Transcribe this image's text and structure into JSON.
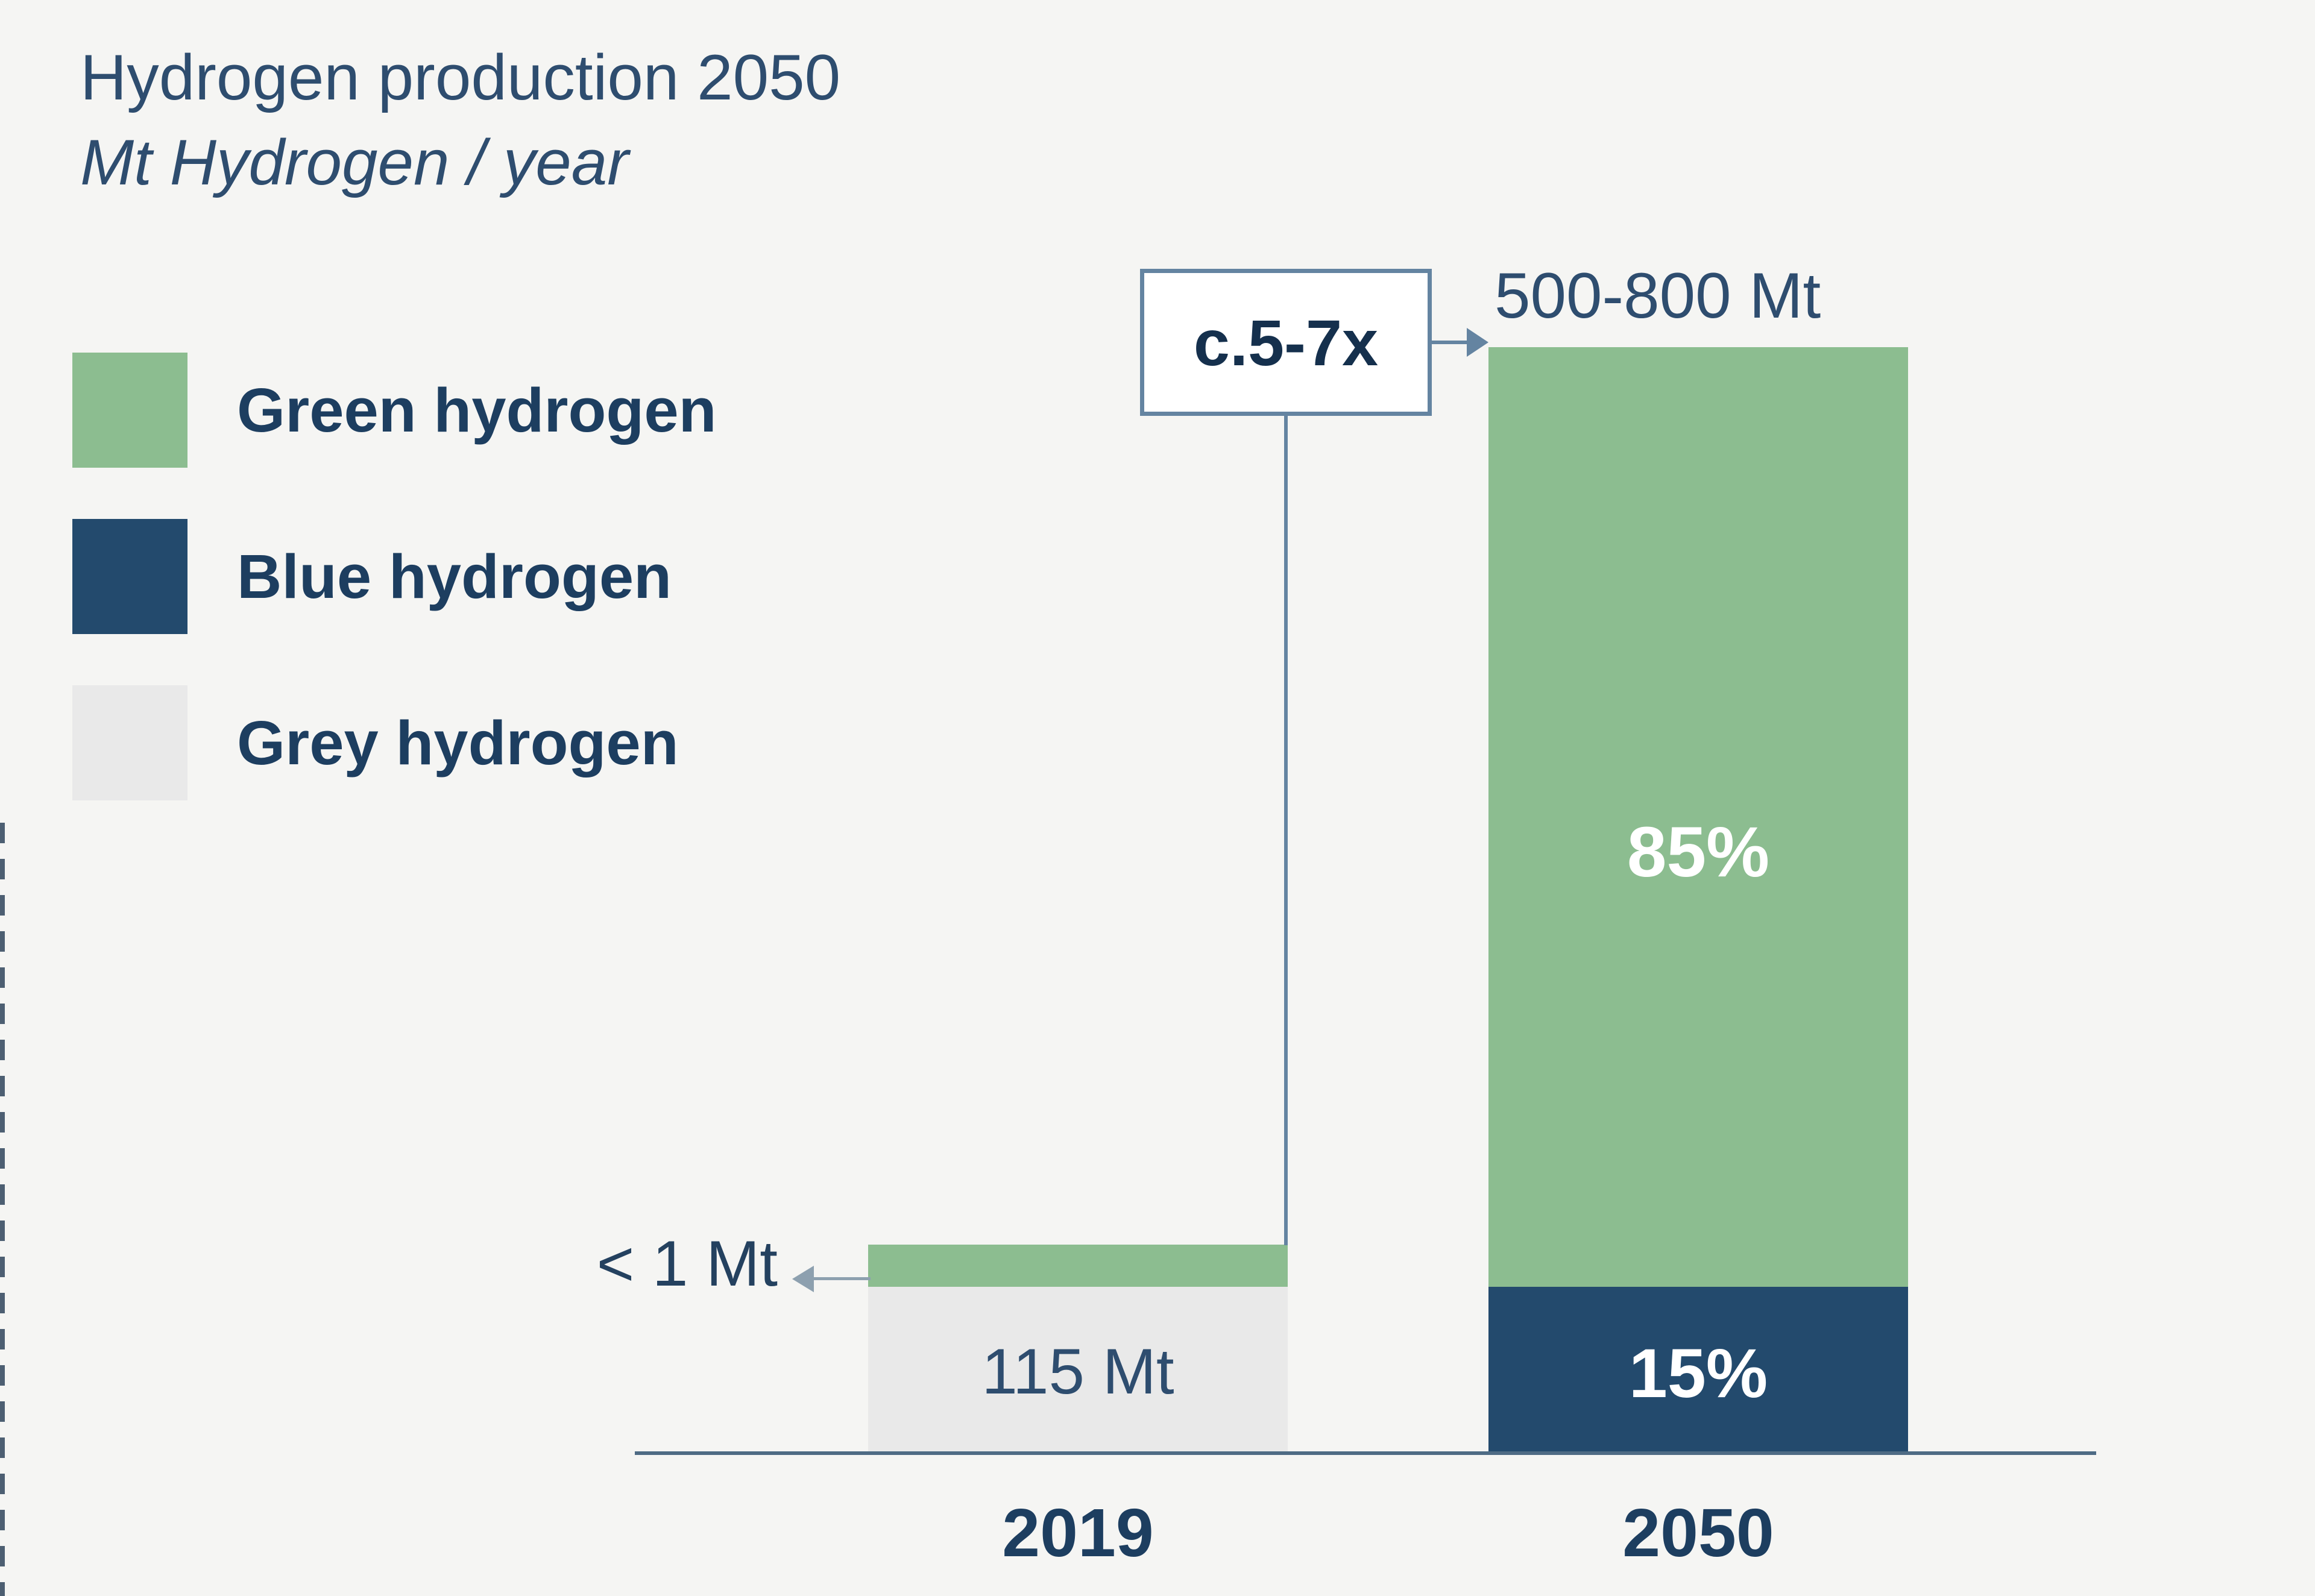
{
  "header": {
    "title": "Hydrogen production 2050",
    "subtitle": "Mt Hydrogen / year"
  },
  "legend": {
    "items": [
      {
        "label": "Green hydrogen",
        "color": "#8cbd90"
      },
      {
        "label": "Blue hydrogen",
        "color": "#234a6d"
      },
      {
        "label": "Grey hydrogen",
        "color": "#e9e9e9"
      }
    ]
  },
  "annotations": {
    "multiplier": "c.5-7x",
    "total_2050": "500-800 Mt",
    "green_2019": "< 1 Mt",
    "total_2019": "115 Mt"
  },
  "bar_labels": {
    "green_2050_pct": "85%",
    "blue_2050_pct": "15%"
  },
  "axis": {
    "ticks": [
      "2019",
      "2050"
    ]
  },
  "chart_data": {
    "type": "bar",
    "stacked": true,
    "title": "Hydrogen production 2050",
    "subtitle": "Mt Hydrogen / year",
    "categories": [
      "2019",
      "2050"
    ],
    "series": [
      {
        "name": "Green hydrogen",
        "color": "#8cbd90",
        "shown_values": [
          "< 1 Mt",
          "85%"
        ],
        "share_2050_pct": 85
      },
      {
        "name": "Blue hydrogen",
        "color": "#234a6d",
        "shown_values": [
          null,
          "15%"
        ],
        "share_2050_pct": 15
      },
      {
        "name": "Grey hydrogen",
        "color": "#e9e9e9",
        "shown_values": [
          "115 Mt",
          null
        ],
        "share_2050_pct": 0
      }
    ],
    "totals": {
      "2019": "115 Mt",
      "2050": "500-800 Mt"
    },
    "growth_multiplier": "c.5-7x",
    "legend_position": "left",
    "grid": false,
    "x_ticks": [
      "2019",
      "2050"
    ],
    "notes": "2019 bar is almost entirely grey hydrogen (115 Mt) with a thin green sliver (< 1 Mt); 2050 bar totals 500-800 Mt split 85% green / 15% blue; arrow box indicates c.5-7x growth from 2019 to 2050"
  }
}
